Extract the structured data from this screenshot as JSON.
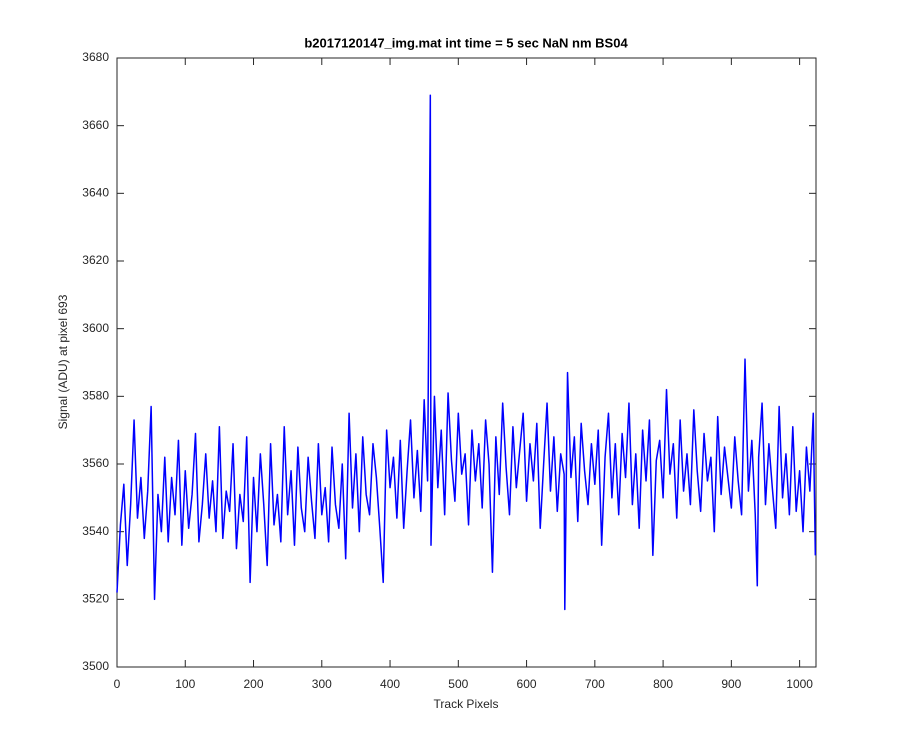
{
  "chart_data": {
    "type": "line",
    "title": "b2017120147_img.mat int time = 5 sec  NaN nm BS04",
    "xlabel": "Track Pixels",
    "ylabel": "Signal (ADU) at pixel 693",
    "color": "#0000ff",
    "xlim": [
      0,
      1024
    ],
    "ylim": [
      3500,
      3680
    ],
    "xticks": [
      0,
      100,
      200,
      300,
      400,
      500,
      600,
      700,
      800,
      900,
      1000
    ],
    "yticks": [
      3500,
      3520,
      3540,
      3560,
      3580,
      3600,
      3620,
      3640,
      3660,
      3680
    ],
    "x": [
      0,
      5,
      10,
      15,
      20,
      25,
      30,
      35,
      40,
      45,
      50,
      55,
      60,
      65,
      70,
      75,
      80,
      85,
      90,
      95,
      100,
      105,
      110,
      115,
      120,
      125,
      130,
      135,
      140,
      145,
      150,
      155,
      160,
      165,
      170,
      175,
      180,
      185,
      190,
      195,
      200,
      205,
      210,
      215,
      220,
      225,
      230,
      235,
      240,
      245,
      250,
      255,
      260,
      265,
      270,
      275,
      280,
      285,
      290,
      295,
      300,
      305,
      310,
      315,
      320,
      325,
      330,
      335,
      340,
      345,
      350,
      355,
      360,
      365,
      370,
      375,
      380,
      385,
      390,
      395,
      400,
      405,
      410,
      415,
      420,
      425,
      430,
      435,
      440,
      445,
      450,
      455,
      459,
      460,
      465,
      470,
      475,
      480,
      485,
      490,
      495,
      500,
      505,
      510,
      515,
      520,
      525,
      530,
      535,
      540,
      545,
      550,
      555,
      560,
      565,
      570,
      575,
      580,
      585,
      590,
      595,
      600,
      605,
      610,
      615,
      620,
      625,
      630,
      635,
      640,
      645,
      650,
      655,
      656,
      660,
      665,
      670,
      675,
      680,
      685,
      690,
      695,
      700,
      705,
      710,
      715,
      720,
      725,
      730,
      735,
      740,
      745,
      750,
      755,
      760,
      765,
      770,
      775,
      780,
      785,
      790,
      795,
      800,
      805,
      810,
      815,
      820,
      825,
      830,
      835,
      840,
      845,
      850,
      855,
      860,
      865,
      870,
      875,
      880,
      885,
      890,
      895,
      900,
      905,
      910,
      915,
      920,
      925,
      930,
      935,
      938,
      940,
      945,
      950,
      955,
      960,
      965,
      970,
      975,
      980,
      985,
      990,
      995,
      1000,
      1005,
      1010,
      1015,
      1020,
      1023
    ],
    "values": [
      3522,
      3542,
      3554,
      3530,
      3548,
      3573,
      3544,
      3556,
      3538,
      3552,
      3577,
      3520,
      3551,
      3540,
      3562,
      3537,
      3556,
      3545,
      3567,
      3536,
      3558,
      3541,
      3551,
      3569,
      3537,
      3548,
      3563,
      3544,
      3555,
      3540,
      3571,
      3538,
      3552,
      3546,
      3566,
      3535,
      3551,
      3543,
      3568,
      3525,
      3556,
      3540,
      3563,
      3548,
      3530,
      3566,
      3542,
      3551,
      3537,
      3571,
      3545,
      3558,
      3536,
      3565,
      3547,
      3540,
      3562,
      3549,
      3538,
      3566,
      3545,
      3553,
      3537,
      3565,
      3548,
      3541,
      3560,
      3532,
      3575,
      3547,
      3563,
      3540,
      3568,
      3551,
      3545,
      3566,
      3556,
      3541,
      3525,
      3570,
      3553,
      3562,
      3544,
      3567,
      3541,
      3558,
      3573,
      3550,
      3564,
      3546,
      3579,
      3555,
      3669,
      3536,
      3580,
      3553,
      3570,
      3545,
      3581,
      3561,
      3549,
      3575,
      3557,
      3563,
      3542,
      3570,
      3555,
      3566,
      3547,
      3573,
      3560,
      3528,
      3568,
      3551,
      3578,
      3559,
      3545,
      3571,
      3553,
      3564,
      3575,
      3549,
      3566,
      3555,
      3572,
      3541,
      3560,
      3578,
      3552,
      3568,
      3546,
      3563,
      3557,
      3517,
      3587,
      3556,
      3568,
      3543,
      3572,
      3558,
      3548,
      3566,
      3554,
      3570,
      3536,
      3562,
      3575,
      3550,
      3566,
      3545,
      3569,
      3556,
      3578,
      3548,
      3563,
      3541,
      3570,
      3555,
      3573,
      3533,
      3561,
      3567,
      3550,
      3582,
      3557,
      3566,
      3544,
      3573,
      3552,
      3563,
      3548,
      3576,
      3558,
      3546,
      3569,
      3555,
      3562,
      3540,
      3574,
      3551,
      3565,
      3556,
      3547,
      3568,
      3555,
      3545,
      3591,
      3552,
      3567,
      3545,
      3524,
      3562,
      3578,
      3548,
      3566,
      3553,
      3541,
      3577,
      3550,
      3563,
      3545,
      3571,
      3546,
      3558,
      3540,
      3565,
      3552,
      3575,
      3533
    ]
  }
}
